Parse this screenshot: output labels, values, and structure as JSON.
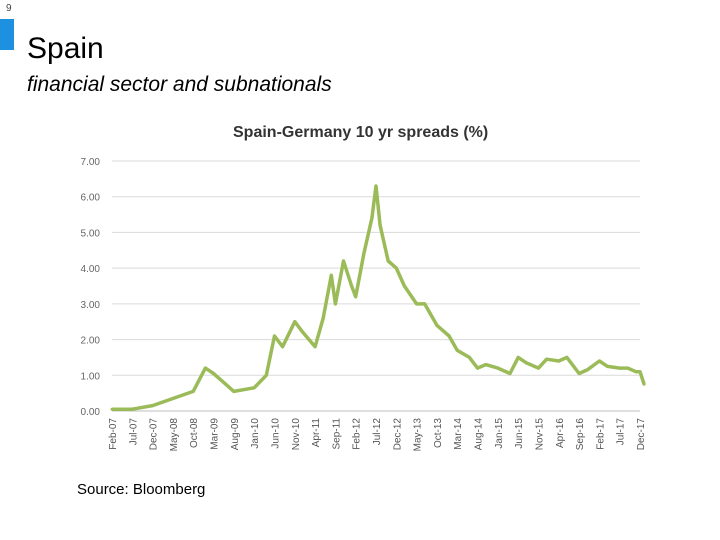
{
  "slide": {
    "page_number": "9",
    "title": "Spain",
    "subtitle": "financial sector and subnationals",
    "source": "Source: Bloomberg",
    "accent_color": "#1e90e0"
  },
  "chart_data": {
    "type": "line",
    "title": "Spain-Germany 10 yr spreads (%)",
    "xlabel": "",
    "ylabel": "",
    "ylim": [
      0,
      7
    ],
    "yticks": [
      "0.00",
      "1.00",
      "2.00",
      "3.00",
      "4.00",
      "5.00",
      "6.00",
      "7.00"
    ],
    "grid": true,
    "legend": "none",
    "line_color": "#9bbb59",
    "x_tick_labels": [
      "Feb-07",
      "Jul-07",
      "Dec-07",
      "May-08",
      "Oct-08",
      "Mar-09",
      "Aug-09",
      "Jan-10",
      "Jun-10",
      "Nov-10",
      "Apr-11",
      "Sep-11",
      "Feb-12",
      "Jul-12",
      "Dec-12",
      "May-13",
      "Oct-13",
      "Mar-14",
      "Aug-14",
      "Jan-15",
      "Jun-15",
      "Nov-15",
      "Apr-16",
      "Sep-16",
      "Feb-17",
      "Jul-17",
      "Dec-17"
    ],
    "series": [
      {
        "x": [
          "Feb-07",
          "Jul-07",
          "Dec-07",
          "May-08",
          "Oct-08",
          "Jan-09",
          "Mar-09",
          "Jun-09",
          "Aug-09",
          "Jan-10",
          "Apr-10",
          "Jun-10",
          "Aug-10",
          "Nov-10",
          "Jan-11",
          "Apr-11",
          "Jun-11",
          "Aug-11",
          "Sep-11",
          "Nov-11",
          "Jan-12",
          "Feb-12",
          "Apr-12",
          "Jun-12",
          "Jul-12",
          "Aug-12",
          "Oct-12",
          "Dec-12",
          "Feb-13",
          "May-13",
          "Jul-13",
          "Oct-13",
          "Jan-14",
          "Mar-14",
          "Jun-14",
          "Aug-14",
          "Oct-14",
          "Jan-15",
          "Apr-15",
          "Jun-15",
          "Aug-15",
          "Nov-15",
          "Jan-16",
          "Apr-16",
          "Jun-16",
          "Sep-16",
          "Nov-16",
          "Feb-17",
          "Apr-17",
          "Jul-17",
          "Sep-17",
          "Nov-17",
          "Dec-17",
          "Jan-18"
        ],
        "values": [
          0.05,
          0.05,
          0.15,
          0.35,
          0.55,
          1.2,
          1.05,
          0.75,
          0.55,
          0.65,
          1.0,
          2.1,
          1.8,
          2.5,
          2.2,
          1.8,
          2.6,
          3.8,
          3.0,
          4.2,
          3.5,
          3.2,
          4.4,
          5.4,
          6.3,
          5.2,
          4.2,
          4.0,
          3.5,
          3.0,
          3.0,
          2.4,
          2.1,
          1.7,
          1.5,
          1.2,
          1.3,
          1.2,
          1.05,
          1.5,
          1.35,
          1.2,
          1.45,
          1.4,
          1.5,
          1.05,
          1.15,
          1.4,
          1.25,
          1.2,
          1.2,
          1.1,
          1.1,
          0.75
        ]
      }
    ]
  }
}
